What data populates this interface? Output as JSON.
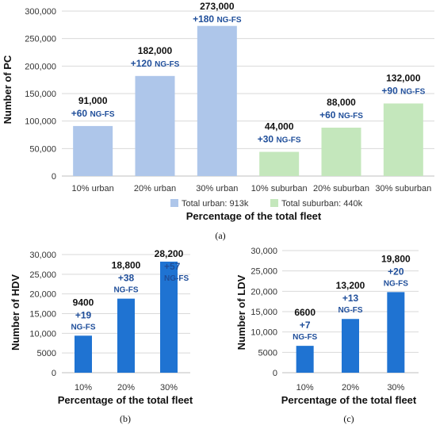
{
  "chart_data": [
    {
      "type": "bar",
      "panel": "(a)",
      "ylabel": "Number of PC",
      "xlabel": "Percentage of the total fleet",
      "ylim": [
        0,
        300000
      ],
      "yticks": [
        "0",
        "50,000",
        "100,000",
        "150,000",
        "200,000",
        "250,000",
        "300,000"
      ],
      "categories": [
        "10% urban",
        "20% urban",
        "30% urban",
        "10% suburban",
        "20% suburban",
        "30% suburban"
      ],
      "values": [
        91000,
        182000,
        273000,
        44000,
        88000,
        132000
      ],
      "value_labels": [
        "91,000",
        "182,000",
        "273,000",
        "44,000",
        "88,000",
        "132,000"
      ],
      "ng_fs_labels": [
        "+60",
        "+120",
        "+180",
        "+30",
        "+60",
        "+90"
      ],
      "ng_fs_unit": "NG-FS",
      "bar_colors": [
        "#aec6ea",
        "#aec6ea",
        "#aec6ea",
        "#c4e7bc",
        "#c4e7bc",
        "#c4e7bc"
      ],
      "legend": [
        {
          "label": "Total urban: 913k",
          "color": "#aec6ea"
        },
        {
          "label": "Total suburban: 440k",
          "color": "#c4e7bc"
        }
      ],
      "legend_placement": "bottom",
      "grid": true
    },
    {
      "type": "bar",
      "panel": "(b)",
      "ylabel": "Number of HDV",
      "xlabel": "Percentage of the total fleet",
      "ylim": [
        0,
        30000
      ],
      "yticks": [
        "0",
        "5000",
        "10,000",
        "15,000",
        "20,000",
        "25,000",
        "30,000"
      ],
      "categories": [
        "10%",
        "20%",
        "30%"
      ],
      "values": [
        9400,
        18800,
        28200
      ],
      "value_labels": [
        "9400",
        "18,800",
        "28,200"
      ],
      "ng_fs_labels": [
        "+19",
        "+38",
        "+57"
      ],
      "ng_fs_unit": "NG-FS",
      "bar_color": "#1f73d2",
      "grid": true
    },
    {
      "type": "bar",
      "panel": "(c)",
      "ylabel": "Number of LDV",
      "xlabel": "Percentage of the total fleet",
      "ylim": [
        0,
        30000
      ],
      "yticks": [
        "0",
        "5000",
        "10,000",
        "15,000",
        "20,000",
        "25,000",
        "30,000"
      ],
      "categories": [
        "10%",
        "20%",
        "30%"
      ],
      "values": [
        6600,
        13200,
        19800
      ],
      "value_labels": [
        "6600",
        "13,200",
        "19,800"
      ],
      "ng_fs_labels": [
        "+7",
        "+13",
        "+20"
      ],
      "ng_fs_unit": "NG-FS",
      "bar_color": "#1f73d2",
      "grid": true
    }
  ]
}
